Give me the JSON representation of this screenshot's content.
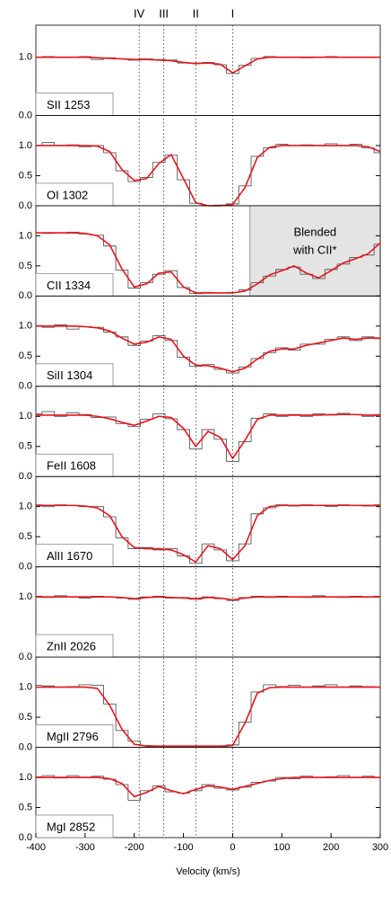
{
  "chart_data": [
    {
      "type": "line",
      "label": "SII 1253",
      "ylim": [
        0,
        1.55
      ],
      "yticks": [
        {
          "value": 0,
          "label": "0.0"
        },
        {
          "value": 1,
          "label": "1.0"
        }
      ],
      "components": [
        {
          "label": "IV",
          "value": -190
        },
        {
          "label": "III",
          "value": -140
        },
        {
          "label": "II",
          "value": -75
        },
        {
          "label": "I",
          "value": 0
        }
      ],
      "x": [
        -400,
        -375,
        -350,
        -325,
        -300,
        -275,
        -250,
        -225,
        -200,
        -175,
        -150,
        -125,
        -100,
        -75,
        -50,
        -25,
        0,
        25,
        50,
        75,
        100,
        125,
        150,
        175,
        200,
        225,
        250,
        275,
        300
      ],
      "series": [
        {
          "style": "step",
          "color": "#555555",
          "values": [
            1,
            1.01,
            1,
            1,
            1.01,
            0.96,
            0.99,
            0.97,
            0.95,
            0.97,
            0.96,
            0.95,
            0.9,
            0.9,
            0.91,
            0.87,
            0.72,
            0.86,
            0.98,
            1.01,
            1,
            1,
            0.99,
            1,
            1.01,
            1,
            1,
            1,
            1
          ]
        },
        {
          "style": "line",
          "color": "#e8141c",
          "values": [
            1,
            1,
            1,
            1,
            1,
            0.99,
            0.98,
            0.97,
            0.96,
            0.96,
            0.95,
            0.94,
            0.91,
            0.89,
            0.9,
            0.88,
            0.73,
            0.85,
            0.97,
            1,
            1,
            1,
            1,
            1,
            1,
            1,
            1,
            1,
            1
          ]
        }
      ]
    },
    {
      "type": "line",
      "label": "OI 1302",
      "ylim": [
        0,
        1.5
      ],
      "yticks": [
        {
          "value": 0,
          "label": "0.0"
        },
        {
          "value": 0.5,
          "label": "0.5"
        },
        {
          "value": 1,
          "label": "1.0"
        }
      ],
      "x": [
        -400,
        -375,
        -350,
        -325,
        -300,
        -275,
        -250,
        -225,
        -200,
        -175,
        -150,
        -125,
        -100,
        -75,
        -50,
        -25,
        0,
        25,
        50,
        75,
        100,
        125,
        150,
        175,
        200,
        225,
        250,
        275,
        300
      ],
      "series": [
        {
          "style": "step",
          "color": "#555555",
          "values": [
            1,
            1.05,
            1,
            1.01,
            0.98,
            1,
            0.88,
            0.58,
            0.4,
            0.47,
            0.72,
            0.84,
            0.43,
            0.04,
            0,
            0.01,
            0.03,
            0.33,
            0.82,
            0.96,
            1.02,
            1,
            1.01,
            1,
            1.03,
            1,
            1.02,
            0.96,
            0.88
          ]
        },
        {
          "style": "line",
          "color": "#e8141c",
          "values": [
            1,
            1,
            1,
            1,
            1,
            0.99,
            0.9,
            0.6,
            0.42,
            0.45,
            0.7,
            0.85,
            0.45,
            0.05,
            0,
            0,
            0.02,
            0.3,
            0.8,
            0.97,
            1,
            1,
            1,
            1,
            1,
            1,
            1,
            0.98,
            0.9
          ]
        }
      ]
    },
    {
      "type": "line",
      "label": "CII 1334",
      "ylim": [
        0,
        1.5
      ],
      "yticks": [
        {
          "value": 0,
          "label": "0.0"
        },
        {
          "value": 0.5,
          "label": "0.5"
        },
        {
          "value": 1,
          "label": "1.0"
        }
      ],
      "shade": [
        35,
        300
      ],
      "annotation": [
        "Blended",
        "with CII*"
      ],
      "x": [
        -400,
        -375,
        -350,
        -325,
        -300,
        -275,
        -250,
        -225,
        -200,
        -175,
        -150,
        -125,
        -100,
        -75,
        -50,
        -25,
        0,
        25,
        50,
        75,
        100,
        125,
        150,
        175,
        200,
        225,
        250,
        275,
        300
      ],
      "series": [
        {
          "style": "step",
          "color": "#555555",
          "values": [
            1.05,
            1.04,
            1.05,
            1.06,
            1.03,
            1.01,
            0.83,
            0.43,
            0.13,
            0.22,
            0.36,
            0.42,
            0.14,
            0.04,
            0.06,
            0.05,
            0.06,
            0.1,
            0.22,
            0.33,
            0.44,
            0.48,
            0.36,
            0.29,
            0.44,
            0.53,
            0.64,
            0.68,
            0.86
          ]
        },
        {
          "style": "line",
          "color": "#e8141c",
          "values": [
            1.05,
            1.05,
            1.05,
            1.05,
            1.04,
            1.0,
            0.85,
            0.45,
            0.15,
            0.2,
            0.38,
            0.4,
            0.15,
            0.05,
            0.05,
            0.05,
            0.05,
            0.08,
            0.2,
            0.35,
            0.42,
            0.5,
            0.38,
            0.3,
            0.42,
            0.55,
            0.62,
            0.7,
            0.88
          ]
        }
      ]
    },
    {
      "type": "line",
      "label": "SiII 1304",
      "ylim": [
        0,
        1.5
      ],
      "yticks": [
        {
          "value": 0,
          "label": "0.0"
        },
        {
          "value": 0.5,
          "label": "0.5"
        },
        {
          "value": 1,
          "label": "1.0"
        }
      ],
      "x": [
        -400,
        -375,
        -350,
        -325,
        -300,
        -275,
        -250,
        -225,
        -200,
        -175,
        -150,
        -125,
        -100,
        -75,
        -50,
        -25,
        0,
        25,
        50,
        75,
        100,
        125,
        150,
        175,
        200,
        225,
        250,
        275,
        300
      ],
      "series": [
        {
          "style": "step",
          "color": "#555555",
          "values": [
            1.01,
            0.98,
            1.02,
            0.95,
            0.99,
            0.98,
            0.9,
            0.82,
            0.68,
            0.75,
            0.84,
            0.76,
            0.48,
            0.33,
            0.36,
            0.28,
            0.22,
            0.32,
            0.46,
            0.56,
            0.64,
            0.6,
            0.7,
            0.7,
            0.78,
            0.82,
            0.76,
            0.82,
            0.79
          ]
        },
        {
          "style": "line",
          "color": "#e8141c",
          "values": [
            1,
            1,
            1,
            1,
            0.99,
            0.97,
            0.92,
            0.8,
            0.7,
            0.73,
            0.82,
            0.78,
            0.5,
            0.35,
            0.34,
            0.3,
            0.24,
            0.3,
            0.45,
            0.58,
            0.62,
            0.62,
            0.68,
            0.72,
            0.76,
            0.8,
            0.78,
            0.8,
            0.8
          ]
        }
      ]
    },
    {
      "type": "line",
      "label": "FeII 1608",
      "ylim": [
        0,
        1.5
      ],
      "yticks": [
        {
          "value": 0,
          "label": "0.0"
        },
        {
          "value": 0.5,
          "label": "0.5"
        },
        {
          "value": 1,
          "label": "1.0"
        }
      ],
      "x": [
        -400,
        -375,
        -350,
        -325,
        -300,
        -275,
        -250,
        -225,
        -200,
        -175,
        -150,
        -125,
        -100,
        -75,
        -50,
        -25,
        0,
        25,
        50,
        75,
        100,
        125,
        150,
        175,
        200,
        225,
        250,
        275,
        300
      ],
      "series": [
        {
          "style": "step",
          "color": "#555555",
          "values": [
            1.04,
            1.08,
            1.0,
            1.06,
            1.03,
            0.98,
            0.99,
            0.88,
            0.83,
            0.95,
            1.04,
            0.96,
            0.78,
            0.46,
            0.78,
            0.62,
            0.25,
            0.58,
            0.97,
            1.04,
            1.0,
            1.03,
            1.0,
            1.04,
            1.02,
            1.05,
            1.03,
            1.0,
            1.03
          ]
        },
        {
          "style": "line",
          "color": "#e8141c",
          "values": [
            1.02,
            1.02,
            1.02,
            1.02,
            1.02,
            1.0,
            0.96,
            0.9,
            0.85,
            0.92,
            1.0,
            0.98,
            0.8,
            0.5,
            0.75,
            0.65,
            0.3,
            0.6,
            0.95,
            1.02,
            1.02,
            1.02,
            1.02,
            1.02,
            1.03,
            1.03,
            1.03,
            1.02,
            1.02
          ]
        }
      ]
    },
    {
      "type": "line",
      "label": "AlII 1670",
      "ylim": [
        0,
        1.5
      ],
      "yticks": [
        {
          "value": 0,
          "label": "0.0"
        },
        {
          "value": 0.5,
          "label": "0.5"
        },
        {
          "value": 1,
          "label": "1.0"
        }
      ],
      "x": [
        -400,
        -375,
        -350,
        -325,
        -300,
        -275,
        -250,
        -225,
        -200,
        -175,
        -150,
        -125,
        -100,
        -75,
        -50,
        -25,
        0,
        25,
        50,
        75,
        100,
        125,
        150,
        175,
        200,
        225,
        250,
        275,
        300
      ],
      "series": [
        {
          "style": "step",
          "color": "#555555",
          "values": [
            1.03,
            1.0,
            1.03,
            1.02,
            1.0,
            1.0,
            0.83,
            0.48,
            0.3,
            0.32,
            0.28,
            0.3,
            0.18,
            0.06,
            0.38,
            0.28,
            0.1,
            0.38,
            0.88,
            0.98,
            1.03,
            1.01,
            1.03,
            1.02,
            1.0,
            1.03,
            1.02,
            1.01,
            1.03
          ]
        },
        {
          "style": "line",
          "color": "#e8141c",
          "values": [
            1.02,
            1.02,
            1.02,
            1.02,
            1.01,
            0.98,
            0.85,
            0.5,
            0.32,
            0.3,
            0.3,
            0.28,
            0.2,
            0.08,
            0.35,
            0.3,
            0.12,
            0.35,
            0.85,
            1.0,
            1.02,
            1.02,
            1.02,
            1.02,
            1.02,
            1.02,
            1.02,
            1.02,
            1.02
          ]
        }
      ]
    },
    {
      "type": "line",
      "label": "ZnII 2026",
      "ylim": [
        0,
        1.5
      ],
      "yticks": [
        {
          "value": 0,
          "label": "0.0"
        },
        {
          "value": 1,
          "label": "1.0"
        }
      ],
      "x": [
        -400,
        -375,
        -350,
        -325,
        -300,
        -275,
        -250,
        -225,
        -200,
        -175,
        -150,
        -125,
        -100,
        -75,
        -50,
        -25,
        0,
        25,
        50,
        75,
        100,
        125,
        150,
        175,
        200,
        225,
        250,
        275,
        300
      ],
      "series": [
        {
          "style": "step",
          "color": "#555555",
          "values": [
            1.01,
            0.99,
            1.02,
            1,
            0.98,
            1.01,
            1,
            0.98,
            0.96,
            1,
            1.01,
            0.98,
            0.99,
            0.96,
            1,
            0.97,
            0.94,
            0.99,
            1.01,
            0.99,
            1.01,
            1,
            0.99,
            1.02,
            1,
            0.99,
            1.01,
            1,
            1.01
          ]
        },
        {
          "style": "line",
          "color": "#e8141c",
          "values": [
            1,
            1,
            1,
            1,
            1,
            1,
            1,
            0.99,
            0.97,
            0.99,
            1,
            0.99,
            0.98,
            0.97,
            0.99,
            0.98,
            0.95,
            0.98,
            1,
            1,
            1,
            1,
            1,
            1,
            1,
            1,
            1,
            1,
            1
          ]
        }
      ]
    },
    {
      "type": "line",
      "label": "MgII 2796",
      "ylim": [
        0,
        1.5
      ],
      "yticks": [
        {
          "value": 0,
          "label": "0.0"
        },
        {
          "value": 0.5,
          "label": "0.5"
        },
        {
          "value": 1,
          "label": "1.0"
        }
      ],
      "x": [
        -400,
        -375,
        -350,
        -325,
        -300,
        -275,
        -250,
        -225,
        -200,
        -175,
        -150,
        -125,
        -100,
        -75,
        -50,
        -25,
        0,
        25,
        50,
        75,
        100,
        125,
        150,
        175,
        200,
        225,
        250,
        275,
        300
      ],
      "series": [
        {
          "style": "step",
          "color": "#555555",
          "values": [
            1.03,
            1.02,
            1.0,
            1.01,
            1.04,
            1.03,
            0.72,
            0.28,
            0.1,
            0.03,
            0.02,
            0.01,
            0.02,
            0.01,
            0.02,
            0.01,
            0.04,
            0.42,
            0.92,
            1.04,
            1.01,
            1.03,
            1.0,
            1.02,
            1.04,
            1.0,
            1.02,
            1.01,
            1.0
          ]
        },
        {
          "style": "line",
          "color": "#e8141c",
          "values": [
            1,
            1,
            1,
            1,
            1,
            0.98,
            0.7,
            0.3,
            0.05,
            0.02,
            0.02,
            0.02,
            0.02,
            0.02,
            0.02,
            0.02,
            0.03,
            0.4,
            0.9,
            0.99,
            1,
            1,
            1,
            1,
            1,
            1,
            1,
            1,
            1
          ]
        }
      ]
    },
    {
      "type": "line",
      "label": "MgI 2852",
      "ylim": [
        0,
        1.5
      ],
      "yticks": [
        {
          "value": 0,
          "label": "0.0"
        },
        {
          "value": 0.5,
          "label": "0.5"
        },
        {
          "value": 1,
          "label": "1.0"
        }
      ],
      "xlabel": "Velocity (km/s)",
      "xlim": [
        -400,
        300
      ],
      "xticks": [
        -400,
        -300,
        -200,
        -100,
        0,
        100,
        200,
        300
      ],
      "x": [
        -400,
        -375,
        -350,
        -325,
        -300,
        -275,
        -250,
        -225,
        -200,
        -175,
        -150,
        -125,
        -100,
        -75,
        -50,
        -25,
        0,
        25,
        50,
        75,
        100,
        125,
        150,
        175,
        200,
        225,
        250,
        275,
        300
      ],
      "series": [
        {
          "style": "step",
          "color": "#555555",
          "values": [
            1.01,
            1.03,
            0.99,
            1.03,
            1.0,
            1.02,
            0.97,
            0.88,
            0.62,
            0.78,
            0.86,
            0.76,
            0.74,
            0.78,
            0.88,
            0.82,
            0.79,
            0.84,
            0.92,
            0.94,
            1.0,
            0.98,
            1.02,
            1.0,
            1.01,
            1.03,
            1.0,
            1.02,
            1.0
          ]
        },
        {
          "style": "line",
          "color": "#e8141c",
          "values": [
            1,
            1,
            1,
            1,
            1,
            1,
            0.98,
            0.9,
            0.68,
            0.75,
            0.85,
            0.78,
            0.73,
            0.8,
            0.86,
            0.84,
            0.8,
            0.85,
            0.9,
            0.95,
            0.98,
            1,
            1,
            1,
            1,
            1,
            1,
            1,
            1
          ]
        }
      ]
    }
  ]
}
